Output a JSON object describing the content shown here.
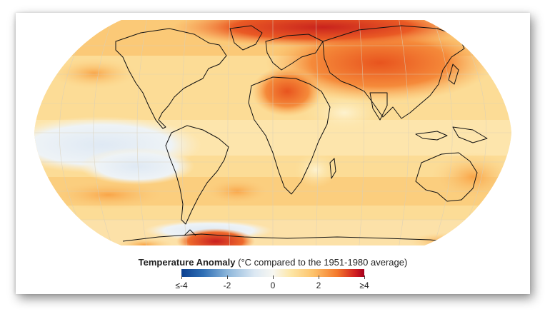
{
  "legend": {
    "title_bold": "Temperature Anomaly",
    "title_rest": "(°C compared to the 1951-1980 average)",
    "ticks": [
      "≤-4",
      "-2",
      "0",
      "2",
      "≥4"
    ],
    "tick_values": [
      -4,
      -2,
      0,
      2,
      4
    ],
    "colors": {
      "cold_extreme": "#0b3f8f",
      "neutral": "#f7f7f2",
      "warm_mid": "#fdc36b",
      "hot_extreme": "#a5001e"
    }
  },
  "map": {
    "projection": "Robinson",
    "features": [
      "ocean-anomaly-field",
      "continent-outlines",
      "graticule"
    ]
  }
}
